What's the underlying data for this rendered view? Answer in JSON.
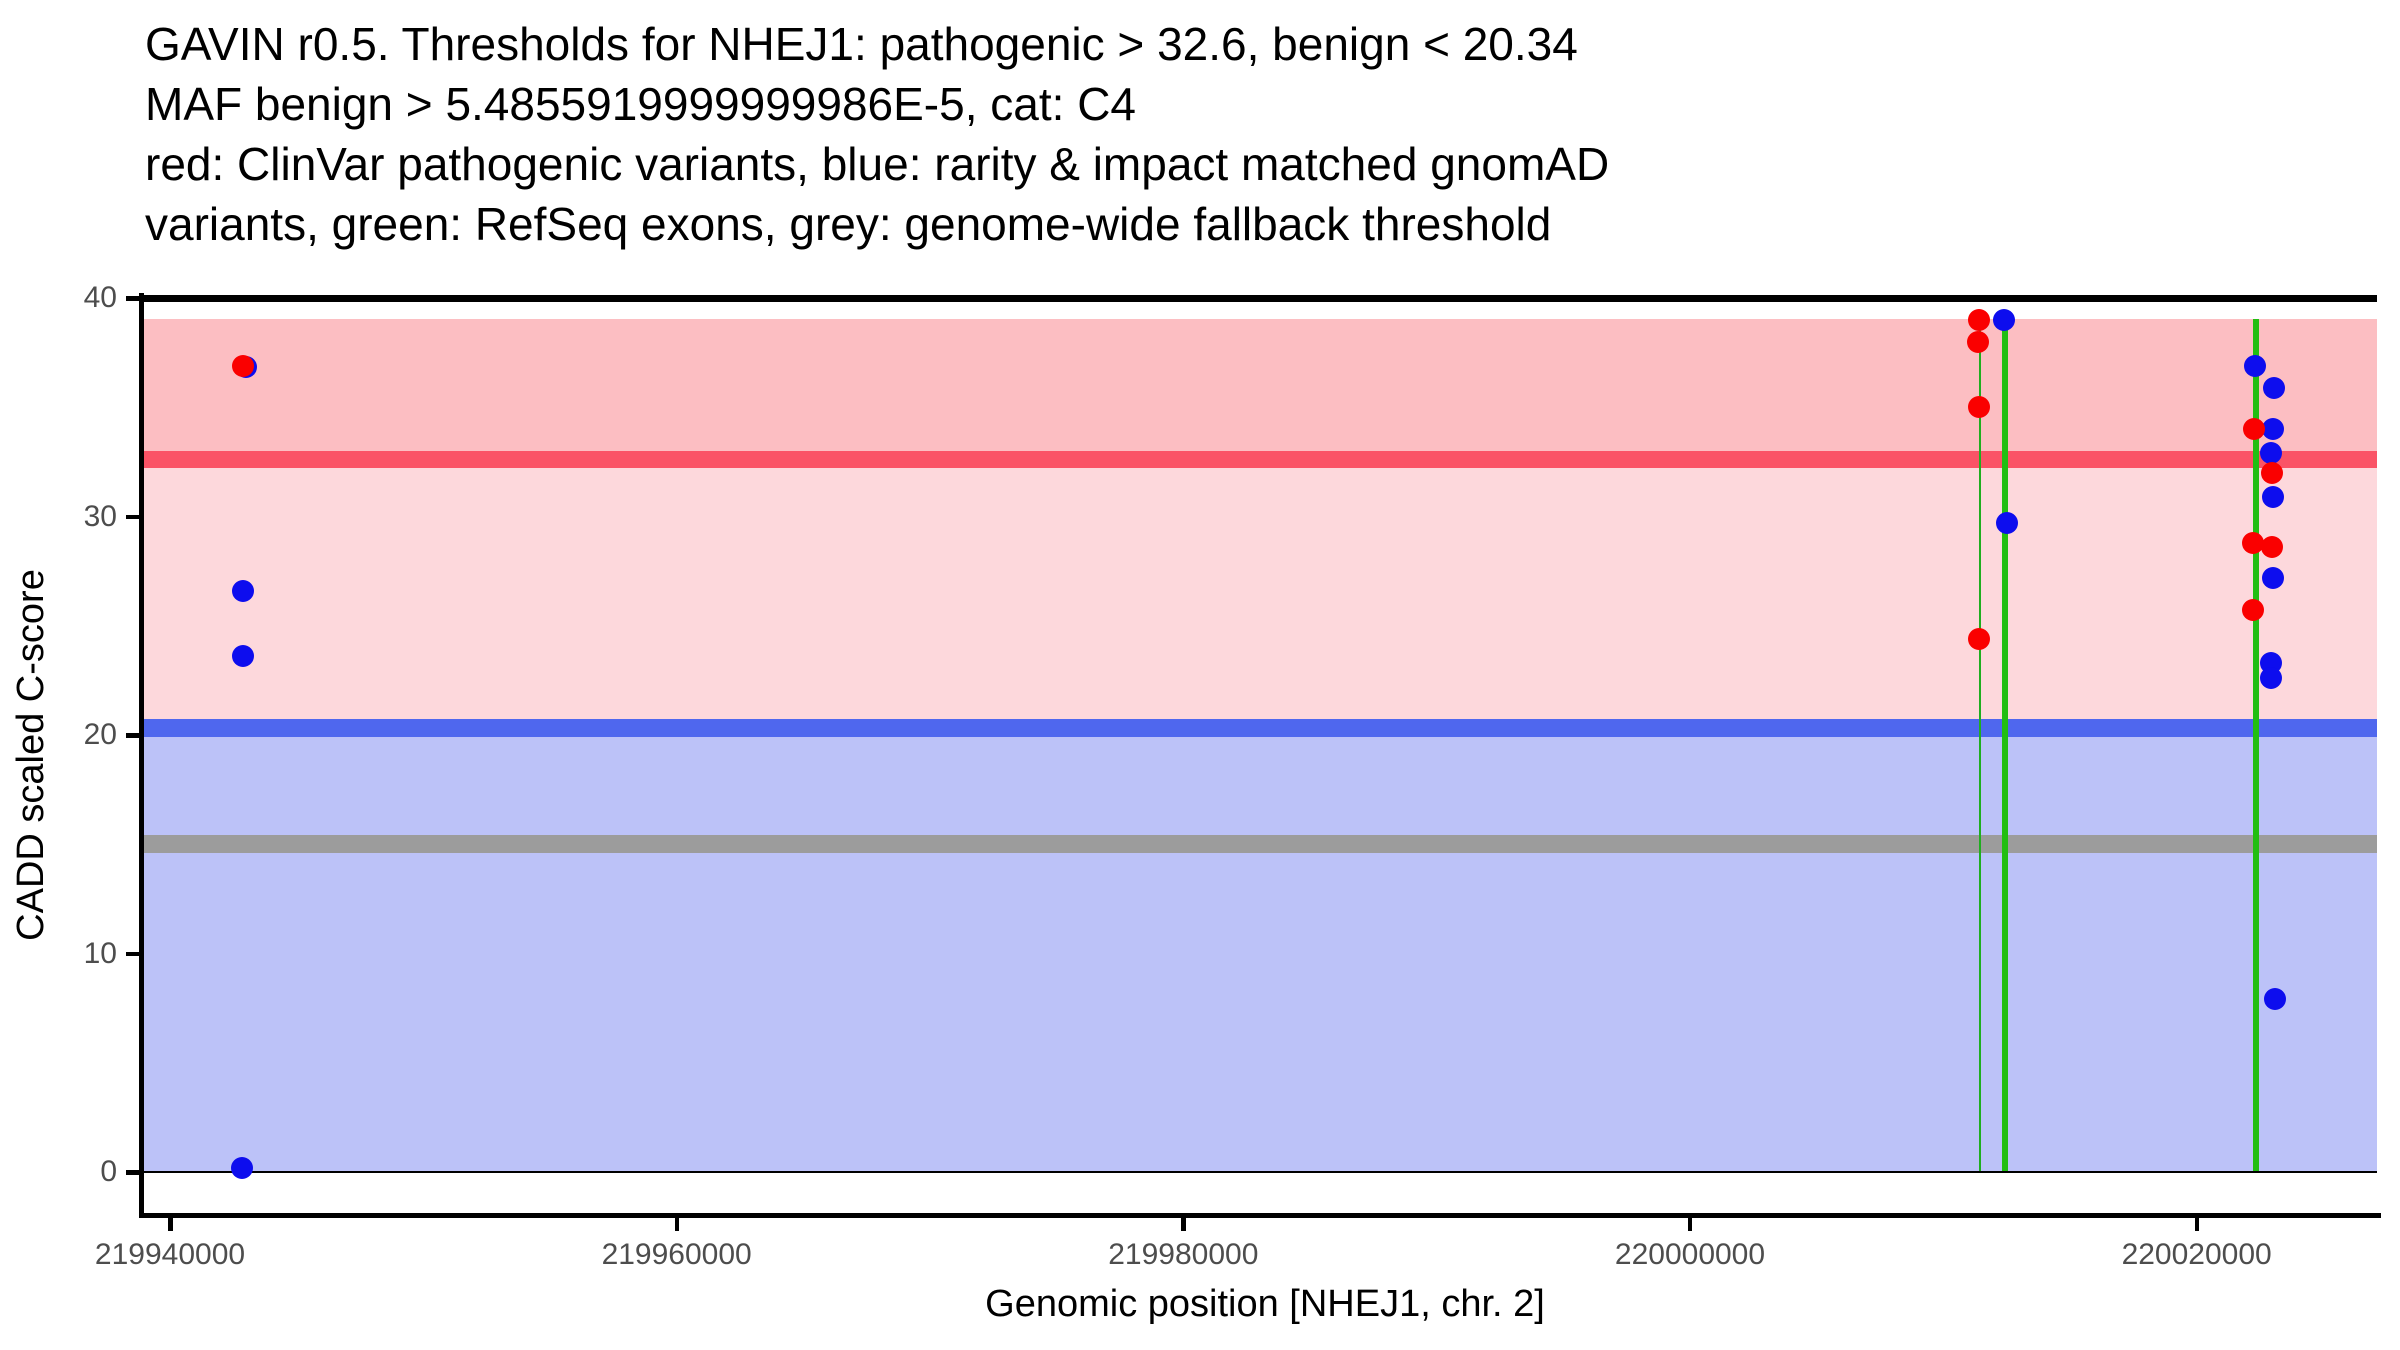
{
  "title_lines": [
    "GAVIN r0.5. Thresholds for NHEJ1: pathogenic > 32.6, benign < 20.34",
    "MAF benign > 5.4855919999999986E-5, cat: C4",
    "red: ClinVar pathogenic variants, blue: rarity & impact matched gnomAD",
    "variants, green: RefSeq exons, grey: genome-wide fallback threshold"
  ],
  "axes": {
    "x_label": "Genomic position [NHEJ1, chr. 2]",
    "y_label": "CADD scaled C-score",
    "x_tick_labels": [
      "219940000",
      "219960000",
      "219980000",
      "220000000",
      "220020000"
    ],
    "y_tick_labels": [
      "0",
      "10",
      "20",
      "30",
      "40"
    ]
  },
  "chart_data": {
    "type": "scatter",
    "title": "GAVIN r0.5. Thresholds for NHEJ1: pathogenic > 32.6, benign < 20.34 MAF benign > 5.4855919999999986E-5, cat: C4 | red: ClinVar pathogenic variants, blue: rarity & impact matched gnomAD variants, green: RefSeq exons, grey: genome-wide fallback threshold",
    "xlabel": "Genomic position [NHEJ1, chr. 2]",
    "ylabel": "CADD scaled C-score",
    "xlim": [
      219938900,
      220027100
    ],
    "ylim": [
      0,
      40
    ],
    "x_ticks": [
      219940000,
      219960000,
      219980000,
      220000000,
      220020000
    ],
    "y_ticks": [
      0,
      10,
      20,
      30,
      40
    ],
    "grid": false,
    "legend": "none",
    "frame_lines_y": [
      40,
      0
    ],
    "regions": [
      {
        "name": "pathogenic-region",
        "from": 32.6,
        "to": 39.05,
        "color": "#FCBEC2"
      },
      {
        "name": "intermediate-region",
        "from": 20.34,
        "to": 32.6,
        "color": "#FDD8DC"
      },
      {
        "name": "benign-region",
        "from": 0,
        "to": 20.34,
        "color": "#BCC2F8"
      }
    ],
    "thresholds": [
      {
        "name": "pathogenic",
        "value": 32.6,
        "color": "#FA5366"
      },
      {
        "name": "benign",
        "value": 20.34,
        "color": "#4F67EE"
      },
      {
        "name": "genome-wide-fallback",
        "value": 15,
        "color": "#9C9C9C"
      }
    ],
    "exons": [
      {
        "name": "refseq-exon",
        "pos": 220011450,
        "stroke_px": 2.5,
        "color": "#1FAE1F"
      },
      {
        "name": "refseq-exon",
        "pos": 220012430,
        "stroke_px": 6,
        "color": "#22BE12"
      },
      {
        "name": "refseq-exon",
        "pos": 220022330,
        "stroke_px": 6,
        "color": "#22BE12"
      }
    ],
    "series": [
      {
        "name": "rarity & impact matched gnomAD variants",
        "color": "#0D0DEE",
        "points": [
          [
            219943000,
            36.85
          ],
          [
            219942900,
            26.6
          ],
          [
            219942900,
            23.6
          ],
          [
            219942850,
            0.2
          ],
          [
            220012400,
            39.0
          ],
          [
            220012500,
            29.7
          ],
          [
            220022300,
            36.9
          ],
          [
            220023050,
            35.9
          ],
          [
            220023000,
            34.0
          ],
          [
            220022950,
            32.9
          ],
          [
            220023000,
            30.9
          ],
          [
            220023000,
            27.2
          ],
          [
            220022950,
            23.3
          ],
          [
            220022950,
            22.6
          ],
          [
            220023100,
            7.9
          ]
        ]
      },
      {
        "name": "ClinVar pathogenic variants",
        "color": "#FA0000",
        "points": [
          [
            219942900,
            36.9
          ],
          [
            220011400,
            39.0
          ],
          [
            220011350,
            38.0
          ],
          [
            220011400,
            35.0
          ],
          [
            220011400,
            24.4
          ],
          [
            220022250,
            34.0
          ],
          [
            220022980,
            32.0
          ],
          [
            220022230,
            28.8
          ],
          [
            220022980,
            28.6
          ],
          [
            220022230,
            25.7
          ]
        ]
      }
    ]
  }
}
